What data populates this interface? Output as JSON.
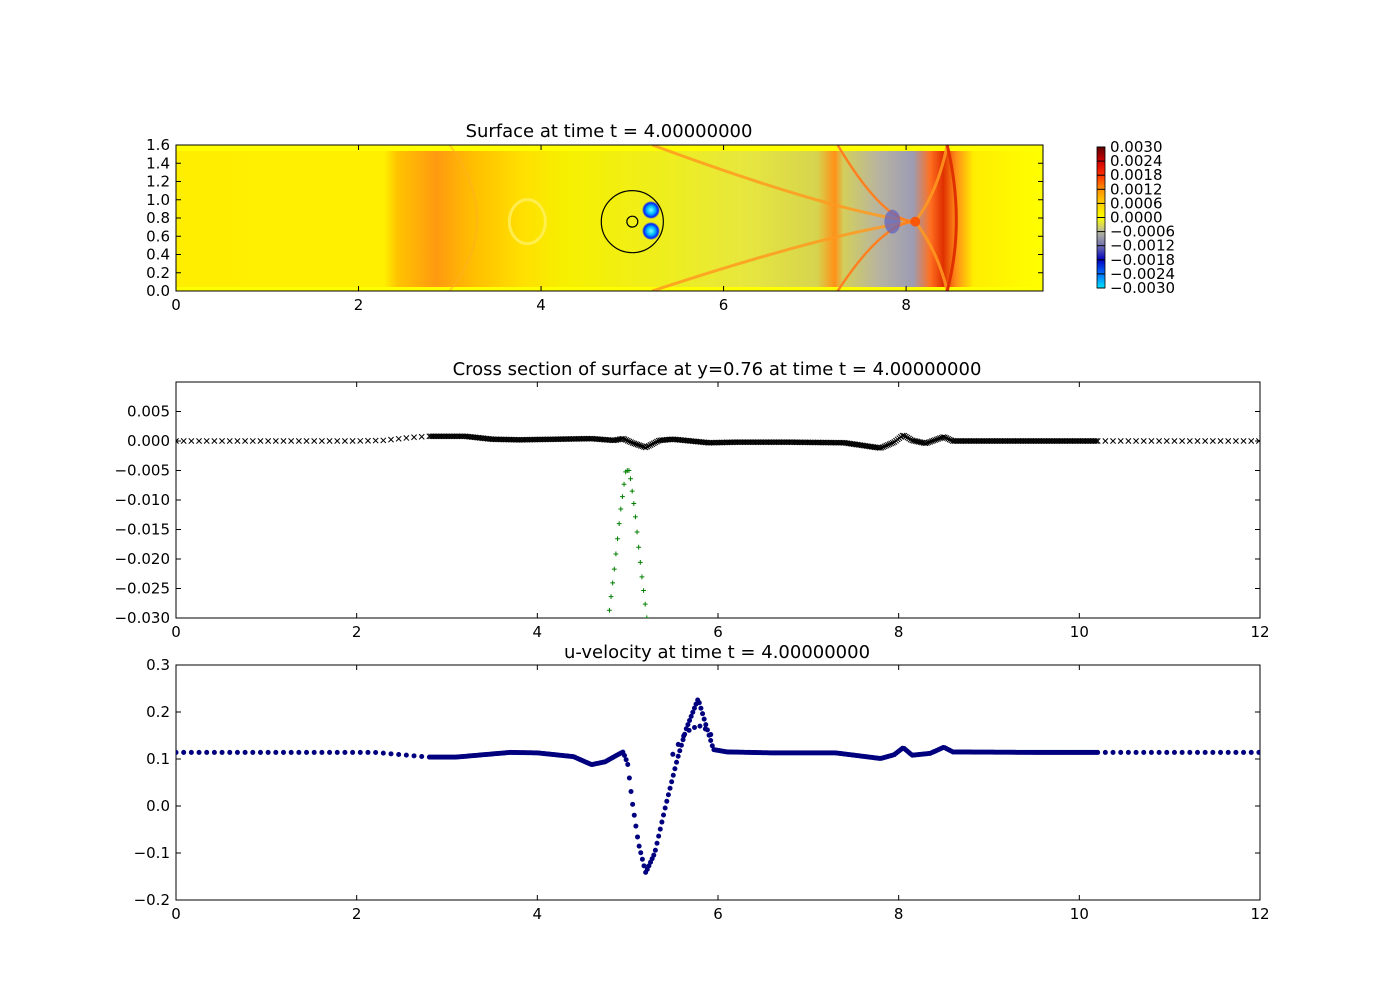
{
  "chart_data": [
    {
      "type": "heatmap",
      "title": "Surface at time t =     4.00000000",
      "xlim": [
        0,
        9.5
      ],
      "ylim": [
        0,
        1.6
      ],
      "x_ticks": [
        "0",
        "2",
        "4",
        "6",
        "8"
      ],
      "y_ticks": [
        "0.0",
        "0.2",
        "0.4",
        "0.6",
        "0.8",
        "1.0",
        "1.2",
        "1.4",
        "1.6"
      ],
      "colorbar": {
        "range": [
          -0.003,
          0.003
        ],
        "ticks": [
          "0.0030",
          "0.0024",
          "0.0018",
          "0.0012",
          "0.0006",
          "0.0000",
          "−0.0006",
          "−0.0012",
          "−0.0018",
          "−0.0024",
          "−0.0030"
        ]
      },
      "annotations": {
        "circle_outer": {
          "cx": 5.0,
          "cy": 0.76,
          "r": 0.34
        },
        "circle_inner": {
          "cx": 5.0,
          "cy": 0.76,
          "r": 0.06
        }
      },
      "features": [
        {
          "x0": 2.3,
          "x1": 3.4,
          "kind": "positive-band"
        },
        {
          "x": 7.3,
          "kind": "positive-ridge"
        },
        {
          "x": 8.1,
          "kind": "crossing"
        },
        {
          "x": 8.45,
          "kind": "positive-front"
        }
      ]
    },
    {
      "type": "scatter",
      "title": "Cross section of surface at y=0.76 at time t =     4.00000000",
      "xlim": [
        0,
        12
      ],
      "ylim": [
        -0.03,
        0.01
      ],
      "x_ticks": [
        "0",
        "2",
        "4",
        "6",
        "8",
        "10",
        "12"
      ],
      "y_ticks": [
        "0.005",
        "0.000",
        "−0.005",
        "−0.010",
        "−0.015",
        "−0.020",
        "−0.025",
        "−0.030"
      ],
      "series": [
        {
          "marker": "x",
          "color": "#000000",
          "points": [
            [
              0,
              0
            ],
            [
              2.0,
              0
            ],
            [
              2.3,
              0.0001
            ],
            [
              2.6,
              0.0006
            ],
            [
              2.8,
              0.0008
            ],
            [
              3.2,
              0.0008
            ],
            [
              3.5,
              0.0003
            ],
            [
              3.8,
              0.0002
            ],
            [
              4.2,
              0.0003
            ],
            [
              4.6,
              0.0004
            ],
            [
              4.85,
              0.0001
            ],
            [
              4.95,
              0.0004
            ],
            [
              5.05,
              -0.0003
            ],
            [
              5.2,
              -0.0011
            ],
            [
              5.35,
              0.0001
            ],
            [
              5.5,
              0.0003
            ],
            [
              5.9,
              -0.0003
            ],
            [
              6.2,
              -0.0002
            ],
            [
              6.8,
              -0.0002
            ],
            [
              7.4,
              -0.0003
            ],
            [
              7.8,
              -0.0012
            ],
            [
              7.95,
              -0.0002
            ],
            [
              8.05,
              0.001
            ],
            [
              8.15,
              0.0001
            ],
            [
              8.3,
              -0.0004
            ],
            [
              8.5,
              0.0007
            ],
            [
              8.6,
              0
            ],
            [
              9.5,
              0
            ],
            [
              10.2,
              0
            ],
            [
              12,
              0
            ]
          ]
        },
        {
          "marker": "+",
          "color": "#007f00",
          "points": [
            [
              4.78,
              -0.031
            ],
            [
              4.85,
              -0.022
            ],
            [
              4.92,
              -0.012
            ],
            [
              4.98,
              -0.005
            ],
            [
              5.02,
              -0.005
            ],
            [
              5.08,
              -0.012
            ],
            [
              5.15,
              -0.022
            ],
            [
              5.22,
              -0.031
            ]
          ]
        }
      ]
    },
    {
      "type": "scatter",
      "title": "u-velocity at time t =     4.00000000",
      "xlim": [
        0,
        12
      ],
      "ylim": [
        -0.2,
        0.3
      ],
      "x_ticks": [
        "0",
        "2",
        "4",
        "6",
        "8",
        "10",
        "12"
      ],
      "y_ticks": [
        "0.3",
        "0.2",
        "0.1",
        "0.0",
        "−0.1",
        "−0.2"
      ],
      "series": [
        {
          "marker": "o",
          "color": "#00007f",
          "points": [
            [
              0,
              0.114
            ],
            [
              2.2,
              0.114
            ],
            [
              2.5,
              0.109
            ],
            [
              2.8,
              0.104
            ],
            [
              3.1,
              0.104
            ],
            [
              3.4,
              0.109
            ],
            [
              3.7,
              0.114
            ],
            [
              4.0,
              0.113
            ],
            [
              4.4,
              0.105
            ],
            [
              4.6,
              0.088
            ],
            [
              4.75,
              0.094
            ],
            [
              4.88,
              0.108
            ],
            [
              4.95,
              0.115
            ],
            [
              5.0,
              0.09
            ],
            [
              5.05,
              0.01
            ],
            [
              5.12,
              -0.08
            ],
            [
              5.2,
              -0.142
            ],
            [
              5.3,
              -0.1
            ],
            [
              5.42,
              0.0
            ],
            [
              5.55,
              0.1
            ],
            [
              5.65,
              0.165
            ],
            [
              5.78,
              0.228
            ],
            [
              5.87,
              0.17
            ],
            [
              5.95,
              0.12
            ],
            [
              6.1,
              0.115
            ],
            [
              6.6,
              0.113
            ],
            [
              7.3,
              0.113
            ],
            [
              7.8,
              0.101
            ],
            [
              7.95,
              0.109
            ],
            [
              8.05,
              0.124
            ],
            [
              8.15,
              0.108
            ],
            [
              8.35,
              0.112
            ],
            [
              8.5,
              0.125
            ],
            [
              8.6,
              0.115
            ],
            [
              9.5,
              0.114
            ],
            [
              10.2,
              0.114
            ],
            [
              12,
              0.114
            ]
          ]
        },
        {
          "marker": "o",
          "color": "#00007f",
          "points": [
            [
              5.5,
              0.11
            ],
            [
              5.6,
              0.145
            ],
            [
              5.7,
              0.165
            ],
            [
              5.8,
              0.17
            ],
            [
              5.9,
              0.16
            ],
            [
              5.95,
              0.14
            ]
          ]
        }
      ]
    }
  ]
}
